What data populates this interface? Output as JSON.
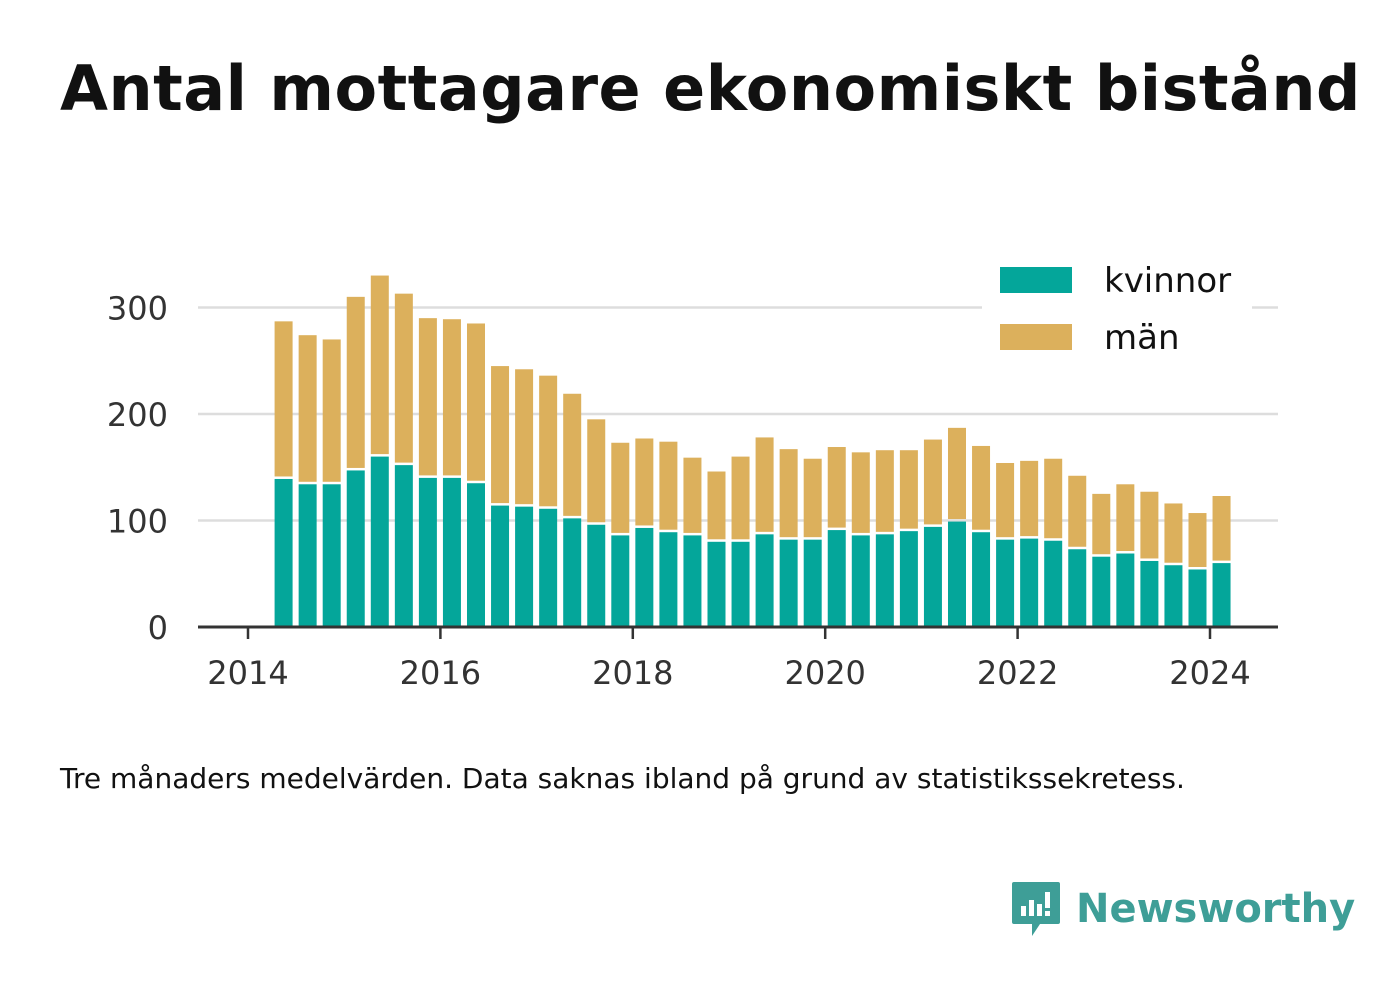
{
  "title": "Antal mottagare ekonomiskt bistånd",
  "footnote": "Tre månaders medelvärden. Data saknas ibland på grund av statistikssekretess.",
  "brand": {
    "name": "Newsworthy",
    "icon": "newsworthy-logo-icon"
  },
  "colors": {
    "kvinnor": "#04a69a",
    "man": "#dcb05c",
    "grid": "#dddddd",
    "axis": "#333333",
    "text": "#333333",
    "brand": "#3e9e97"
  },
  "legend": [
    {
      "key": "kvinnor",
      "label": "kvinnor"
    },
    {
      "key": "man",
      "label": "män"
    }
  ],
  "chart_data": {
    "type": "bar",
    "stacked": true,
    "title": "Antal mottagare ekonomiskt bistånd",
    "x_ticks": [
      "2014",
      "2016",
      "2018",
      "2020",
      "2022",
      "2024"
    ],
    "y_ticks": [
      0,
      100,
      200,
      300
    ],
    "xlim": [
      2014.0,
      2024.4
    ],
    "ylim": [
      0,
      330
    ],
    "grid": true,
    "legend_position": "top-right",
    "x": [
      2014.37,
      2014.62,
      2014.87,
      2015.12,
      2015.37,
      2015.62,
      2015.87,
      2016.12,
      2016.37,
      2016.62,
      2016.87,
      2017.12,
      2017.37,
      2017.62,
      2017.87,
      2018.12,
      2018.37,
      2018.62,
      2018.87,
      2019.12,
      2019.37,
      2019.62,
      2019.87,
      2020.12,
      2020.37,
      2020.62,
      2020.87,
      2021.12,
      2021.37,
      2021.62,
      2021.87,
      2022.12,
      2022.37,
      2022.62,
      2022.87,
      2023.12,
      2023.37,
      2023.62,
      2023.87,
      2024.12
    ],
    "series": [
      {
        "name": "kvinnor",
        "values": [
          139,
          134,
          134,
          147,
          160,
          152,
          140,
          140,
          135,
          114,
          113,
          111,
          102,
          96,
          86,
          93,
          89,
          86,
          80,
          80,
          87,
          82,
          82,
          91,
          86,
          87,
          90,
          94,
          99,
          89,
          82,
          83,
          81,
          73,
          66,
          69,
          62,
          58,
          54,
          60
        ]
      },
      {
        "name": "män",
        "values": [
          148,
          140,
          136,
          163,
          170,
          161,
          150,
          149,
          150,
          131,
          129,
          125,
          117,
          99,
          87,
          84,
          85,
          73,
          66,
          80,
          91,
          85,
          76,
          78,
          78,
          79,
          76,
          82,
          88,
          81,
          72,
          73,
          77,
          69,
          59,
          65,
          65,
          58,
          53,
          63
        ]
      }
    ]
  }
}
